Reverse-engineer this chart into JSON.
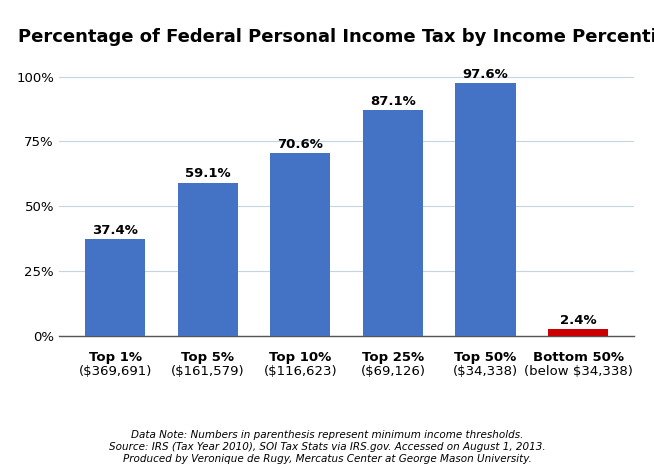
{
  "title": "Percentage of Federal Personal Income Tax by Income Percentile",
  "cat_labels": [
    "Top 1%",
    "Top 5%",
    "Top 10%",
    "Top 25%",
    "Top 50%",
    "Bottom 50%"
  ],
  "sub_labels": [
    "($369,691)",
    "($161,579)",
    "($116,623)",
    "($69,126)",
    "($34,338)",
    "(below $34,338)"
  ],
  "values": [
    37.4,
    59.1,
    70.6,
    87.1,
    97.6,
    2.4
  ],
  "bar_colors": [
    "#4472C4",
    "#4472C4",
    "#4472C4",
    "#4472C4",
    "#4472C4",
    "#CC0000"
  ],
  "value_labels": [
    "37.4%",
    "59.1%",
    "70.6%",
    "87.1%",
    "97.6%",
    "2.4%"
  ],
  "ylim": [
    0,
    108
  ],
  "yticks": [
    0,
    25,
    50,
    75,
    100
  ],
  "ytick_labels": [
    "0%",
    "25%",
    "50%",
    "75%",
    "100%"
  ],
  "footnote_line1": "Data Note: Numbers in parenthesis represent minimum income thresholds.",
  "footnote_line2": "Source: IRS (Tax Year 2010), SOI Tax Stats via IRS.gov. Accessed on August 1, 2013.",
  "footnote_line3": "Produced by Veronique de Rugy, Mercatus Center at George Mason University.",
  "background_color": "#FFFFFF",
  "grid_color": "#C5D5E0",
  "title_fontsize": 13,
  "label_fontsize": 9.5,
  "tick_fontsize": 9.5,
  "footnote_fontsize": 7.5
}
